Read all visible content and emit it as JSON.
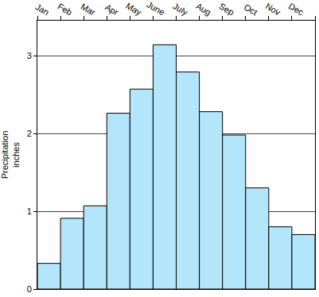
{
  "chart_data": {
    "type": "bar",
    "categories": [
      "Jan",
      "Feb",
      "Mar",
      "Apr",
      "May",
      "June",
      "July",
      "Aug",
      "Sep",
      "Oct",
      "Nov",
      "Dec"
    ],
    "values": [
      0.33,
      0.91,
      1.07,
      2.26,
      2.57,
      3.14,
      2.79,
      2.28,
      1.98,
      1.3,
      0.8,
      0.7
    ],
    "color": "#b3e5fb",
    "y_label": "Precipitation inches",
    "ylim": [
      0,
      3.45
    ],
    "yticks": [
      0,
      1,
      2,
      3
    ],
    "grid": true
  }
}
